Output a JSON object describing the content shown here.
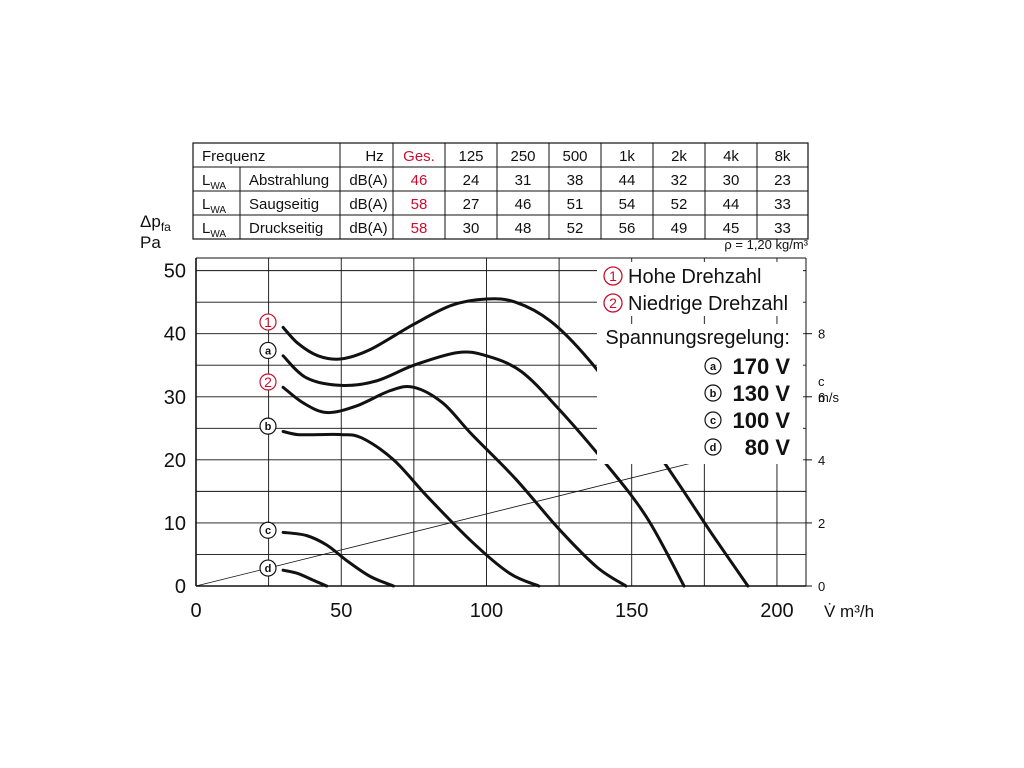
{
  "table": {
    "header": [
      "Frequenz",
      "Hz",
      "Ges.",
      "125",
      "250",
      "500",
      "1k",
      "2k",
      "4k",
      "8k"
    ],
    "rows": [
      {
        "label": "L",
        "sub": "WA",
        "name": "Abstrahlung",
        "unit": "dB(A)",
        "values": [
          "46",
          "24",
          "31",
          "38",
          "44",
          "32",
          "30",
          "23"
        ]
      },
      {
        "label": "L",
        "sub": "WA",
        "name": "Saugseitig",
        "unit": "dB(A)",
        "values": [
          "58",
          "27",
          "46",
          "51",
          "54",
          "52",
          "44",
          "33"
        ]
      },
      {
        "label": "L",
        "sub": "WA",
        "name": "Druckseitig",
        "unit": "dB(A)",
        "values": [
          "58",
          "30",
          "48",
          "52",
          "56",
          "49",
          "45",
          "33"
        ]
      }
    ],
    "density_note": "ρ = 1,20 kg/m³",
    "highlight_color": "#c8102e"
  },
  "legend": {
    "high": {
      "marker": "①",
      "label": "Hohe Drehzahl"
    },
    "low": {
      "marker": "②",
      "label": "Niedrige Drehzahl"
    },
    "title": "Spannungsregelung:",
    "items": [
      {
        "badge": "a",
        "label": "170 V"
      },
      {
        "badge": "b",
        "label": "130 V"
      },
      {
        "badge": "c",
        "label": "100 V"
      },
      {
        "badge": "d",
        "label": "80 V"
      }
    ]
  },
  "chart_data": {
    "type": "line",
    "ylabel": "Δp",
    "ylabel_sub": "fa",
    "yunit": "Pa",
    "xlabel": "V̇ m³/h",
    "xlim": [
      0,
      210
    ],
    "ylim": [
      0,
      52
    ],
    "xticks": [
      0,
      50,
      100,
      150,
      200
    ],
    "yticks": [
      0,
      10,
      20,
      30,
      40,
      50
    ],
    "right_axis": {
      "label": "c",
      "unit": "m/s",
      "ticks": [
        0,
        2,
        4,
        6,
        8
      ],
      "y_at_8": 40
    },
    "grid": true,
    "series": [
      {
        "marker": "①",
        "color": "#111111",
        "points": [
          [
            30,
            41
          ],
          [
            35,
            38.5
          ],
          [
            42,
            36.5
          ],
          [
            50,
            36
          ],
          [
            60,
            37.5
          ],
          [
            75,
            41.5
          ],
          [
            88,
            44.5
          ],
          [
            100,
            45.5
          ],
          [
            110,
            45
          ],
          [
            122,
            42
          ],
          [
            135,
            36
          ],
          [
            150,
            27
          ],
          [
            165,
            17
          ],
          [
            178,
            8
          ],
          [
            190,
            0
          ]
        ]
      },
      {
        "marker": "a",
        "color": "#111111",
        "points": [
          [
            30,
            36.5
          ],
          [
            38,
            33
          ],
          [
            50,
            31.8
          ],
          [
            62,
            32.5
          ],
          [
            75,
            35
          ],
          [
            90,
            37
          ],
          [
            100,
            36.5
          ],
          [
            112,
            34
          ],
          [
            125,
            28
          ],
          [
            140,
            20
          ],
          [
            155,
            11
          ],
          [
            168,
            0
          ]
        ]
      },
      {
        "marker": "②",
        "color": "#111111",
        "points": [
          [
            30,
            31.5
          ],
          [
            37,
            29
          ],
          [
            45,
            27.5
          ],
          [
            55,
            28.5
          ],
          [
            67,
            31
          ],
          [
            75,
            31.5
          ],
          [
            85,
            29
          ],
          [
            95,
            24
          ],
          [
            110,
            17
          ],
          [
            125,
            9
          ],
          [
            138,
            3
          ],
          [
            148,
            0
          ]
        ]
      },
      {
        "marker": "b",
        "color": "#111111",
        "points": [
          [
            30,
            24.5
          ],
          [
            35,
            24
          ],
          [
            42,
            24
          ],
          [
            50,
            24
          ],
          [
            57,
            23.5
          ],
          [
            68,
            20
          ],
          [
            80,
            14
          ],
          [
            95,
            7
          ],
          [
            108,
            2
          ],
          [
            118,
            0
          ]
        ]
      },
      {
        "marker": "c",
        "color": "#111111",
        "points": [
          [
            30,
            8.5
          ],
          [
            38,
            8
          ],
          [
            45,
            6.5
          ],
          [
            52,
            4
          ],
          [
            60,
            1.5
          ],
          [
            68,
            0
          ]
        ]
      },
      {
        "marker": "d",
        "color": "#111111",
        "points": [
          [
            30,
            2.5
          ],
          [
            35,
            2
          ],
          [
            40,
            1
          ],
          [
            45,
            0
          ]
        ]
      }
    ],
    "system_line": {
      "points": [
        [
          0,
          0
        ],
        [
          175,
          20
        ]
      ]
    },
    "curve_markers": [
      {
        "symbol": "①",
        "y": 42,
        "kind": "red"
      },
      {
        "symbol": "a",
        "y": 37.5,
        "kind": "badge"
      },
      {
        "symbol": "②",
        "y": 32.5,
        "kind": "red"
      },
      {
        "symbol": "b",
        "y": 25.5,
        "kind": "badge"
      },
      {
        "symbol": "c",
        "y": 9,
        "kind": "badge"
      },
      {
        "symbol": "d",
        "y": 3,
        "kind": "badge"
      }
    ]
  }
}
